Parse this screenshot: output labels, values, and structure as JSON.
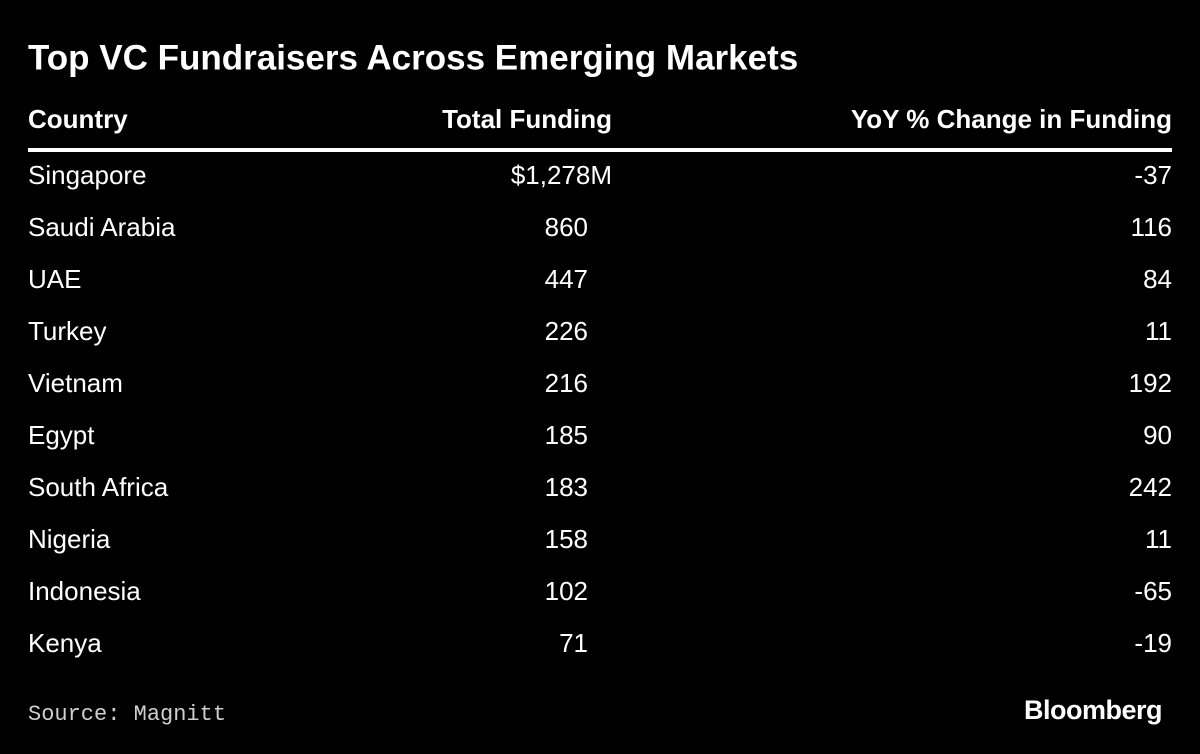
{
  "title": "Top VC Fundraisers Across Emerging Markets",
  "table": {
    "headers": [
      "Country",
      "Total Funding",
      "YoY % Change in Funding"
    ],
    "rows": [
      [
        "Singapore",
        "$1,278M",
        "-37"
      ],
      [
        "Saudi Arabia",
        "860",
        "116"
      ],
      [
        "UAE",
        "447",
        "84"
      ],
      [
        "Turkey",
        "226",
        "11"
      ],
      [
        "Vietnam",
        "216",
        "192"
      ],
      [
        "Egypt",
        "185",
        "90"
      ],
      [
        "South Africa",
        "183",
        "242"
      ],
      [
        "Nigeria",
        "158",
        "11"
      ],
      [
        "Indonesia",
        "102",
        "-65"
      ],
      [
        "Kenya",
        "71",
        "-19"
      ]
    ]
  },
  "source": "Source: Magnitt",
  "brand": "Bloomberg"
}
